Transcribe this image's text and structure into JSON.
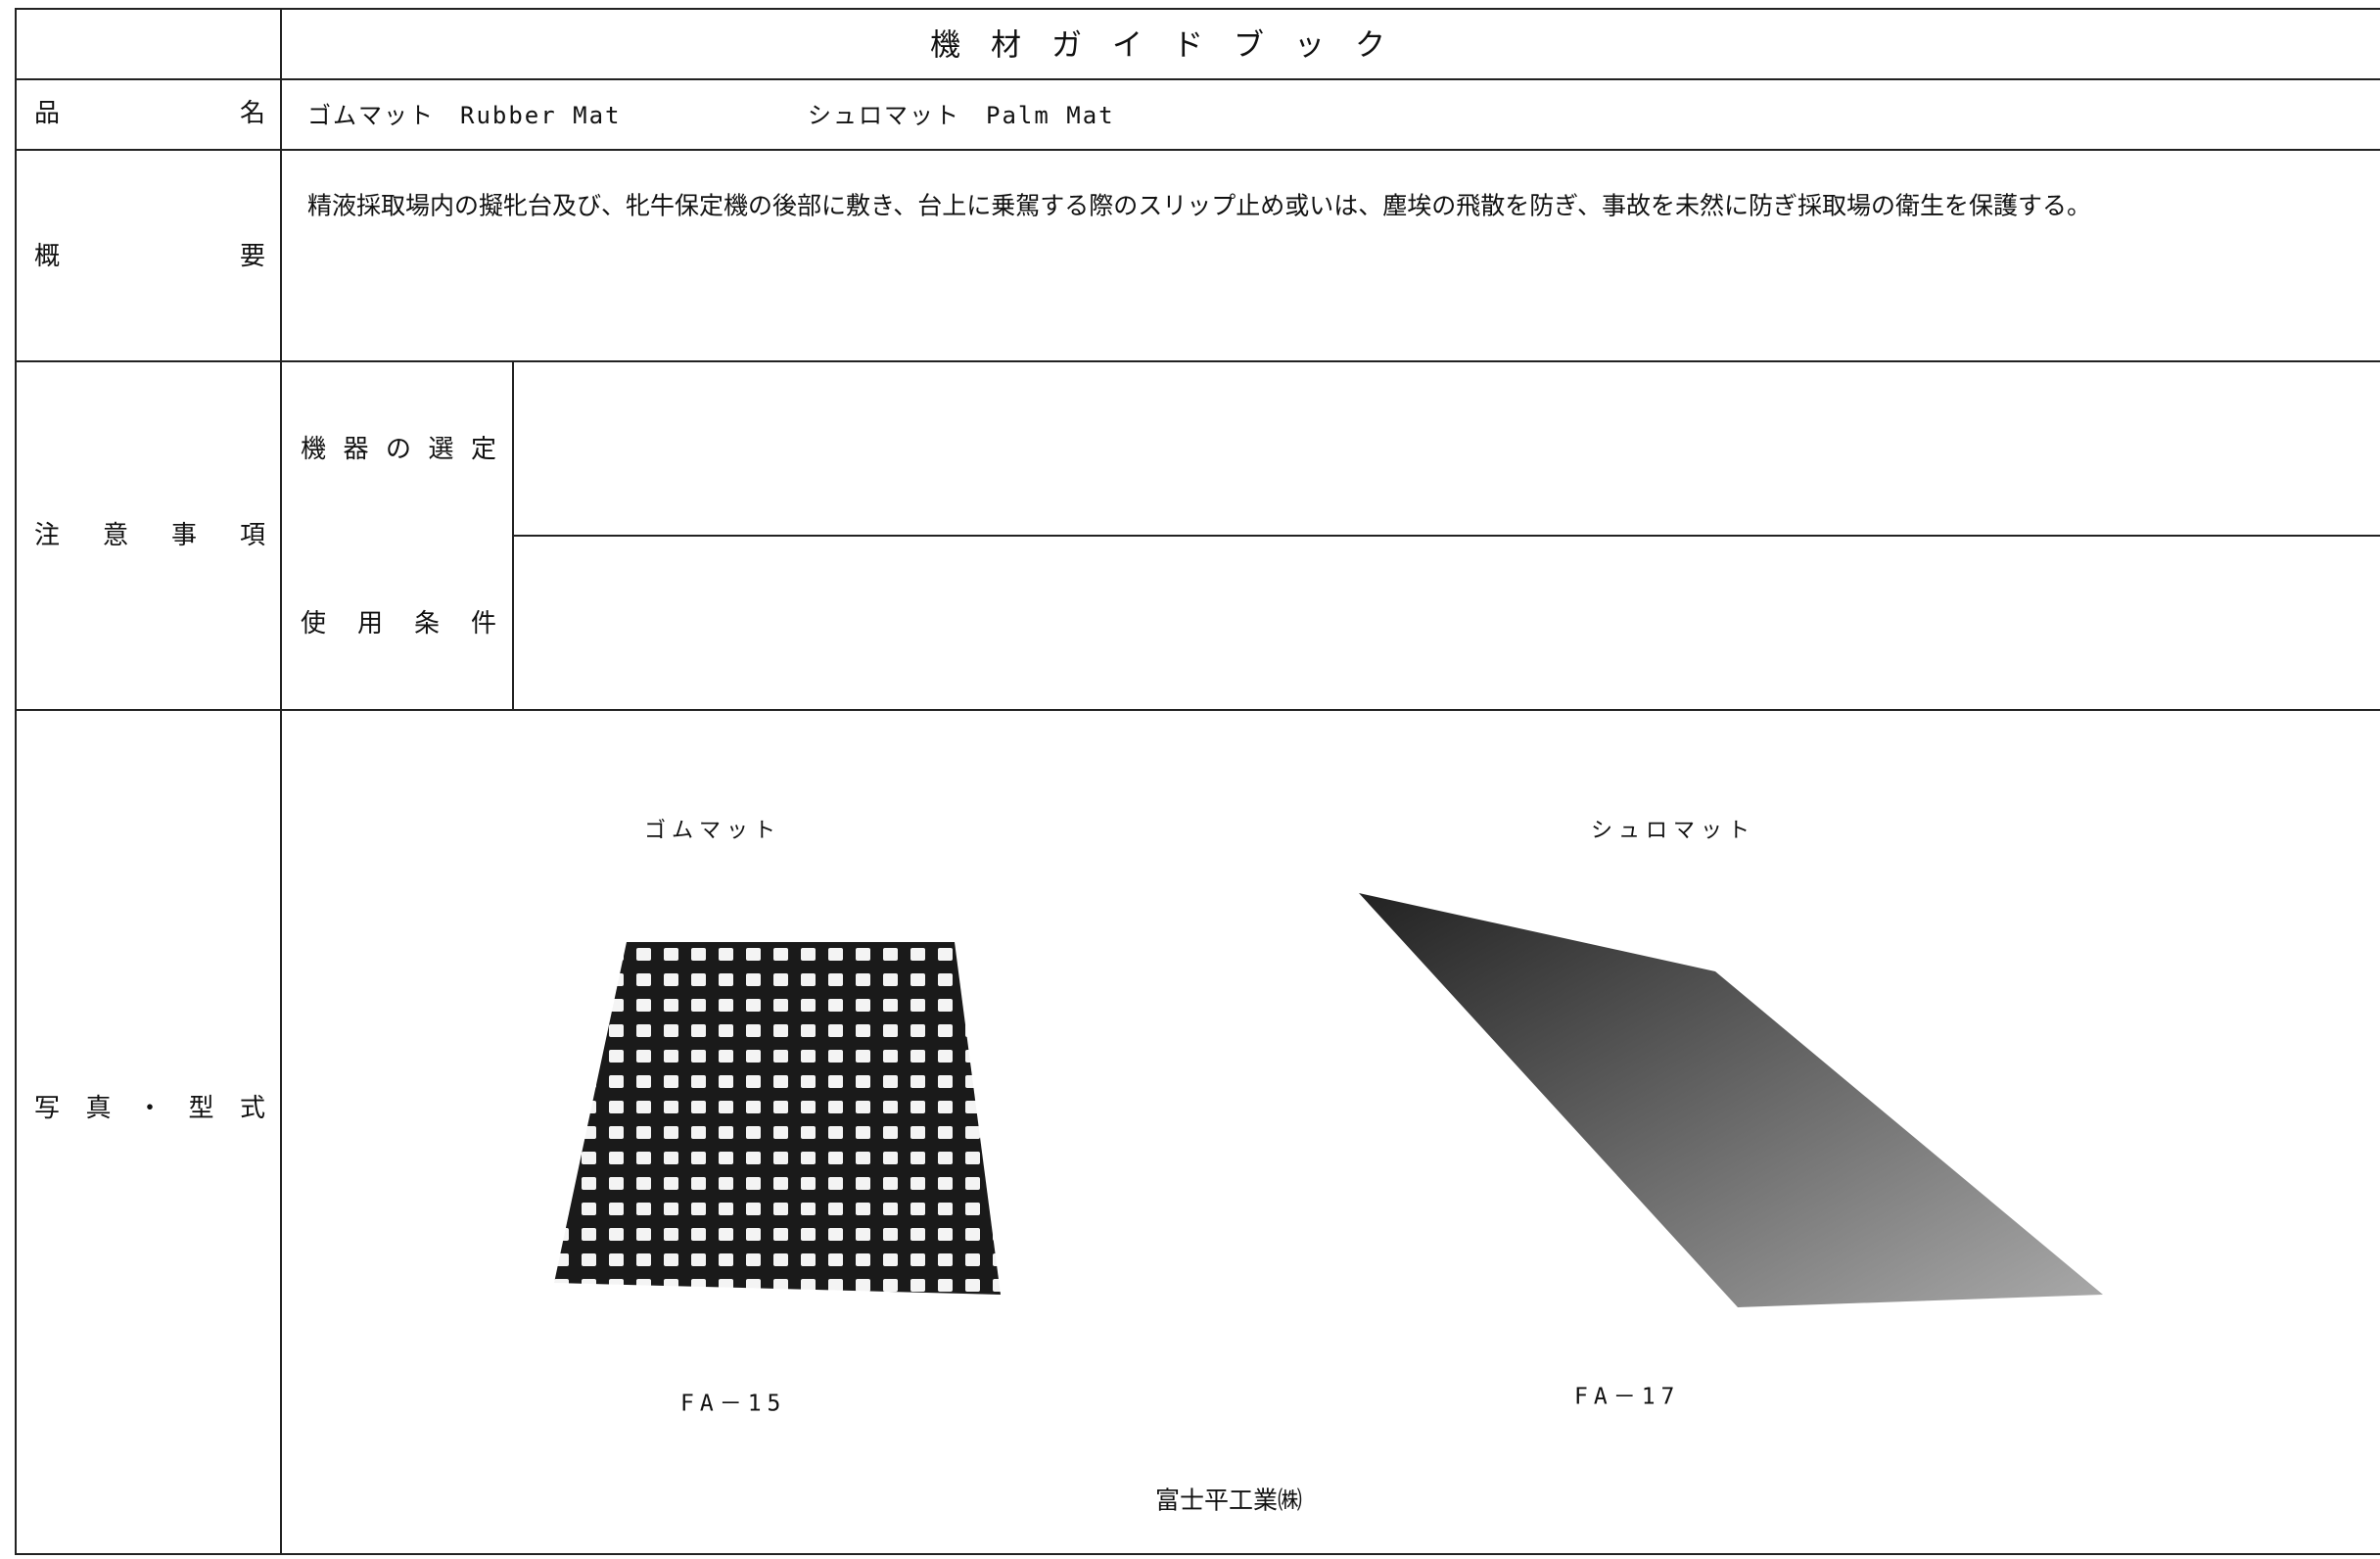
{
  "header": {
    "title": "機　材　ガ　イ　ド　ブ　ッ　ク"
  },
  "product_name": {
    "label": "品名",
    "items": [
      "ゴムマット　Rubber Mat",
      "シュロマット　Palm Mat"
    ]
  },
  "overview": {
    "label": "概要",
    "text": "精液採取場内の擬牝台及び、牝牛保定機の後部に敷き、台上に乗駕する際のスリップ止め或いは、塵埃の飛散を防ぎ、事故を未然に防ぎ採取場の衛生を保護する。"
  },
  "notes": {
    "label": "注意事項",
    "items": [
      {
        "label": "機器の選定"
      },
      {
        "label": "使用条件"
      }
    ]
  },
  "photos": {
    "label": "写真・型式",
    "items": [
      {
        "caption": "ゴムマット",
        "model": "FA－15"
      },
      {
        "caption": "シュロマット",
        "model": "FA－17"
      }
    ],
    "manufacturer": "富士平工業㈱"
  }
}
